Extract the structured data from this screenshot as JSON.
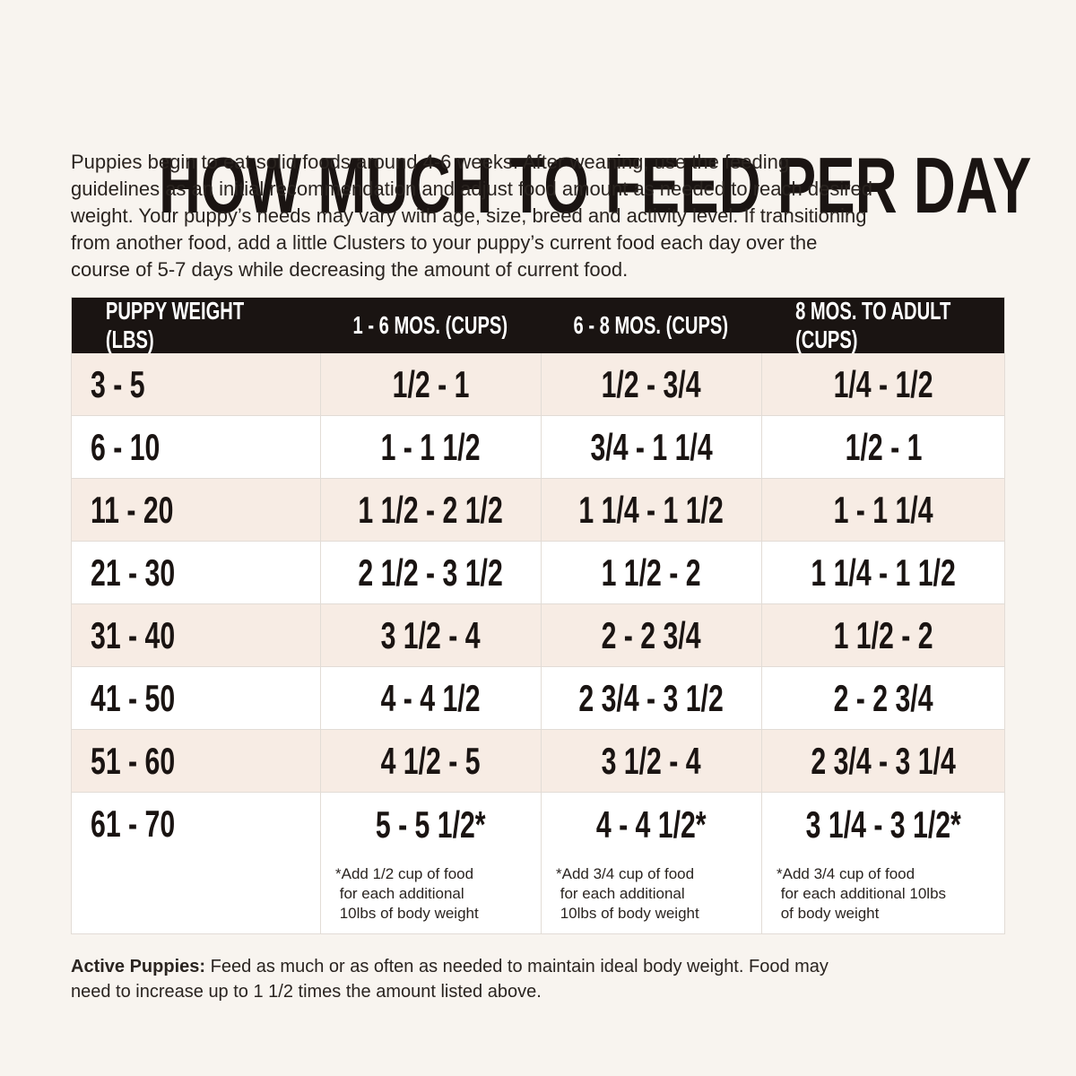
{
  "header": {
    "title": "HOW MUCH TO FEED PER DAY",
    "intro": [
      "Puppies begin to eat solid foods around 4-6 weeks. After weaning, use the feeding",
      "guidelines as an initial recommendation and adjust food amount as needed to reach desired",
      "weight. Your puppy’s needs may vary with age, size, breed and activity level. If transitioning",
      "from another food, add a little Clusters to your puppy’s current food each day over the",
      "course of 5-7 days while decreasing the amount of current food."
    ]
  },
  "table": {
    "columns": [
      "PUPPY WEIGHT (LBS)",
      "1 - 6 MOS. (CUPS)",
      "6 - 8 MOS. (CUPS)",
      "8 MOS. TO ADULT (CUPS)"
    ],
    "rows": [
      [
        "3 - 5",
        "1/2 - 1",
        "1/2 - 3/4",
        "1/4 - 1/2"
      ],
      [
        "6 - 10",
        "1 - 1 1/2",
        "3/4 - 1 1/4",
        "1/2 - 1"
      ],
      [
        "11 - 20",
        "1 1/2 - 2 1/2",
        "1 1/4 - 1 1/2",
        "1 - 1 1/4"
      ],
      [
        "21 - 30",
        "2 1/2 - 3 1/2",
        "1 1/2 - 2",
        "1 1/4 - 1 1/2"
      ],
      [
        "31 - 40",
        "3 1/2 - 4",
        "2 - 2 3/4",
        "1 1/2 - 2"
      ],
      [
        "41 - 50",
        "4 - 4 1/2",
        "2 3/4 - 3 1/2",
        "2 - 2 3/4"
      ],
      [
        "51 - 60",
        "4 1/2 - 5",
        "3 1/2 - 4",
        "2 3/4 - 3 1/4"
      ],
      [
        "61 - 70",
        "5 - 5 1/2*",
        "4 - 4 1/2*",
        "3 1/4 - 3 1/2*"
      ]
    ],
    "notes": [
      [
        "*Add 1/2 cup of food",
        " for each additional",
        " 10lbs of body weight"
      ],
      [
        "*Add 3/4 cup of food",
        " for each additional",
        " 10lbs of body weight"
      ],
      [
        "*Add 3/4 cup of food",
        " for each additional 10lbs",
        " of body weight"
      ]
    ]
  },
  "footer": {
    "label": "Active Puppies:",
    "lines": [
      "Feed as much or as often as needed to maintain ideal body weight. Food may",
      "need to increase up to 1 1/2 times the amount listed above."
    ]
  }
}
